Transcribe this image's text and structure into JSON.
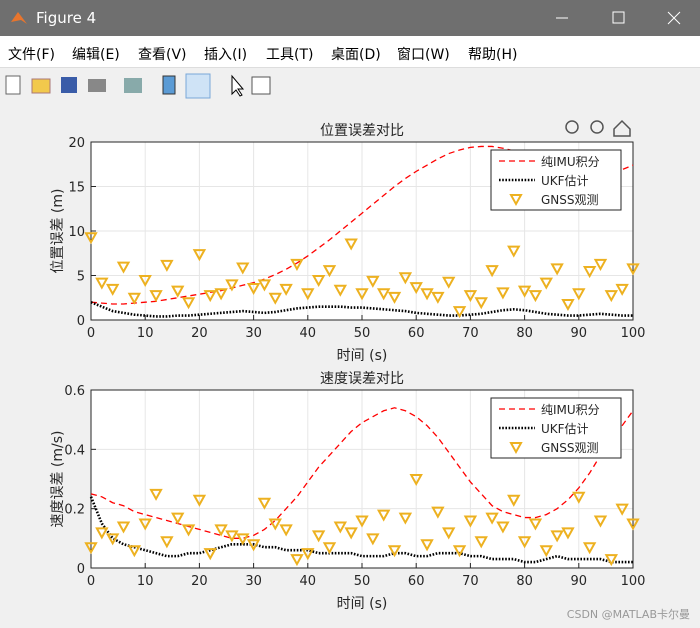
{
  "window": {
    "title": "Figure 4",
    "menu": [
      "文件(F)",
      "编辑(E)",
      "查看(V)",
      "插入(I)",
      "工具(T)",
      "桌面(D)",
      "窗口(W)",
      "帮助(H)"
    ]
  },
  "chart_data": [
    {
      "type": "line",
      "title": "位置误差对比",
      "xlabel": "时间 (s)",
      "ylabel": "位置误差 (m)",
      "x": [
        0,
        2,
        4,
        6,
        8,
        10,
        12,
        14,
        16,
        18,
        20,
        22,
        24,
        26,
        28,
        30,
        32,
        34,
        36,
        38,
        40,
        42,
        44,
        46,
        48,
        50,
        52,
        54,
        56,
        58,
        60,
        62,
        64,
        66,
        68,
        70,
        72,
        74,
        76,
        78,
        80,
        82,
        84,
        86,
        88,
        90,
        92,
        94,
        96,
        98,
        100
      ],
      "series": [
        {
          "name": "纯IMU积分",
          "color": "#ff0000",
          "style": "dashed",
          "values": [
            2.0,
            1.9,
            1.8,
            1.8,
            1.9,
            2.0,
            2.1,
            2.3,
            2.5,
            2.7,
            2.9,
            3.1,
            3.3,
            3.6,
            3.9,
            4.2,
            4.6,
            5.1,
            5.7,
            6.4,
            7.2,
            8.1,
            9.0,
            10.0,
            11.0,
            12.0,
            13.0,
            14.0,
            15.0,
            15.9,
            16.7,
            17.4,
            18.1,
            18.7,
            19.1,
            19.4,
            19.5,
            19.5,
            19.3,
            19.0,
            18.6,
            18.1,
            17.7,
            17.3,
            17.0,
            16.7,
            16.4,
            16.3,
            16.5,
            16.9,
            17.4
          ]
        },
        {
          "name": "UKF估计",
          "color": "#000000",
          "style": "dotted",
          "values": [
            2.0,
            1.5,
            1.0,
            0.8,
            0.6,
            0.5,
            0.4,
            0.4,
            0.5,
            0.5,
            0.6,
            0.7,
            0.8,
            0.9,
            1.0,
            0.9,
            0.8,
            0.9,
            1.1,
            1.3,
            1.4,
            1.5,
            1.5,
            1.5,
            1.4,
            1.4,
            1.3,
            1.2,
            1.1,
            1.0,
            0.8,
            0.7,
            0.6,
            0.5,
            0.5,
            0.6,
            0.7,
            0.9,
            1.1,
            1.2,
            1.1,
            0.9,
            0.7,
            0.6,
            0.5,
            0.5,
            0.6,
            0.7,
            0.6,
            0.5,
            0.5
          ]
        },
        {
          "name": "GNSS观测",
          "color": "#edb120",
          "style": "marker",
          "values": [
            9.3,
            4.2,
            3.5,
            6.0,
            2.5,
            4.5,
            2.8,
            6.2,
            3.3,
            2.0,
            7.4,
            2.8,
            3.0,
            4.0,
            5.9,
            3.6,
            4.0,
            2.5,
            3.5,
            6.3,
            3.0,
            4.5,
            5.6,
            3.4,
            8.6,
            3.0,
            4.4,
            3.0,
            2.6,
            4.8,
            3.7,
            3.0,
            2.6,
            4.3,
            1.0,
            2.8,
            2.0,
            5.6,
            3.1,
            7.8,
            3.3,
            2.8,
            4.2,
            5.8,
            1.8,
            3.0,
            5.5,
            6.3,
            2.8,
            3.5,
            5.8
          ]
        }
      ],
      "xlim": [
        0,
        100
      ],
      "ylim": [
        0,
        20
      ],
      "xticks": [
        0,
        10,
        20,
        30,
        40,
        50,
        60,
        70,
        80,
        90,
        100
      ],
      "yticks": [
        0,
        5,
        10,
        15,
        20
      ],
      "grid": true,
      "legend": "northeast"
    },
    {
      "type": "line",
      "title": "速度误差对比",
      "xlabel": "时间 (s)",
      "ylabel": "速度误差 (m/s)",
      "x": [
        0,
        2,
        4,
        6,
        8,
        10,
        12,
        14,
        16,
        18,
        20,
        22,
        24,
        26,
        28,
        30,
        32,
        34,
        36,
        38,
        40,
        42,
        44,
        46,
        48,
        50,
        52,
        54,
        56,
        58,
        60,
        62,
        64,
        66,
        68,
        70,
        72,
        74,
        76,
        78,
        80,
        82,
        84,
        86,
        88,
        90,
        92,
        94,
        96,
        98,
        100
      ],
      "series": [
        {
          "name": "纯IMU积分",
          "color": "#ff0000",
          "style": "dashed",
          "values": [
            0.25,
            0.24,
            0.22,
            0.21,
            0.19,
            0.18,
            0.17,
            0.16,
            0.15,
            0.14,
            0.13,
            0.12,
            0.11,
            0.1,
            0.1,
            0.11,
            0.13,
            0.16,
            0.2,
            0.24,
            0.29,
            0.34,
            0.38,
            0.42,
            0.46,
            0.49,
            0.51,
            0.53,
            0.54,
            0.53,
            0.51,
            0.48,
            0.44,
            0.39,
            0.34,
            0.29,
            0.25,
            0.21,
            0.19,
            0.18,
            0.17,
            0.17,
            0.18,
            0.2,
            0.23,
            0.27,
            0.32,
            0.38,
            0.43,
            0.48,
            0.53
          ]
        },
        {
          "name": "UKF估计",
          "color": "#000000",
          "style": "dotted",
          "values": [
            0.24,
            0.15,
            0.1,
            0.08,
            0.07,
            0.06,
            0.05,
            0.04,
            0.04,
            0.05,
            0.05,
            0.06,
            0.07,
            0.08,
            0.08,
            0.08,
            0.07,
            0.07,
            0.06,
            0.06,
            0.06,
            0.05,
            0.05,
            0.05,
            0.05,
            0.04,
            0.04,
            0.04,
            0.05,
            0.05,
            0.04,
            0.04,
            0.05,
            0.05,
            0.05,
            0.04,
            0.04,
            0.03,
            0.03,
            0.03,
            0.02,
            0.02,
            0.03,
            0.04,
            0.03,
            0.03,
            0.03,
            0.03,
            0.02,
            0.02,
            0.02
          ]
        },
        {
          "name": "GNSS观测",
          "color": "#edb120",
          "style": "marker",
          "values": [
            0.07,
            0.12,
            0.1,
            0.14,
            0.06,
            0.15,
            0.25,
            0.09,
            0.17,
            0.13,
            0.23,
            0.05,
            0.13,
            0.11,
            0.1,
            0.08,
            0.22,
            0.15,
            0.13,
            0.03,
            0.05,
            0.11,
            0.07,
            0.14,
            0.12,
            0.16,
            0.1,
            0.18,
            0.06,
            0.17,
            0.3,
            0.08,
            0.19,
            0.12,
            0.06,
            0.16,
            0.09,
            0.17,
            0.14,
            0.23,
            0.09,
            0.15,
            0.06,
            0.11,
            0.12,
            0.24,
            0.07,
            0.16,
            0.03,
            0.2,
            0.15
          ]
        }
      ],
      "xlim": [
        0,
        100
      ],
      "ylim": [
        0,
        0.6
      ],
      "xticks": [
        0,
        10,
        20,
        30,
        40,
        50,
        60,
        70,
        80,
        90,
        100
      ],
      "yticks": [
        0,
        0.2,
        0.4,
        0.6
      ],
      "grid": true,
      "legend": "northeast"
    }
  ],
  "watermark": "CSDN @MATLAB卡尔曼"
}
